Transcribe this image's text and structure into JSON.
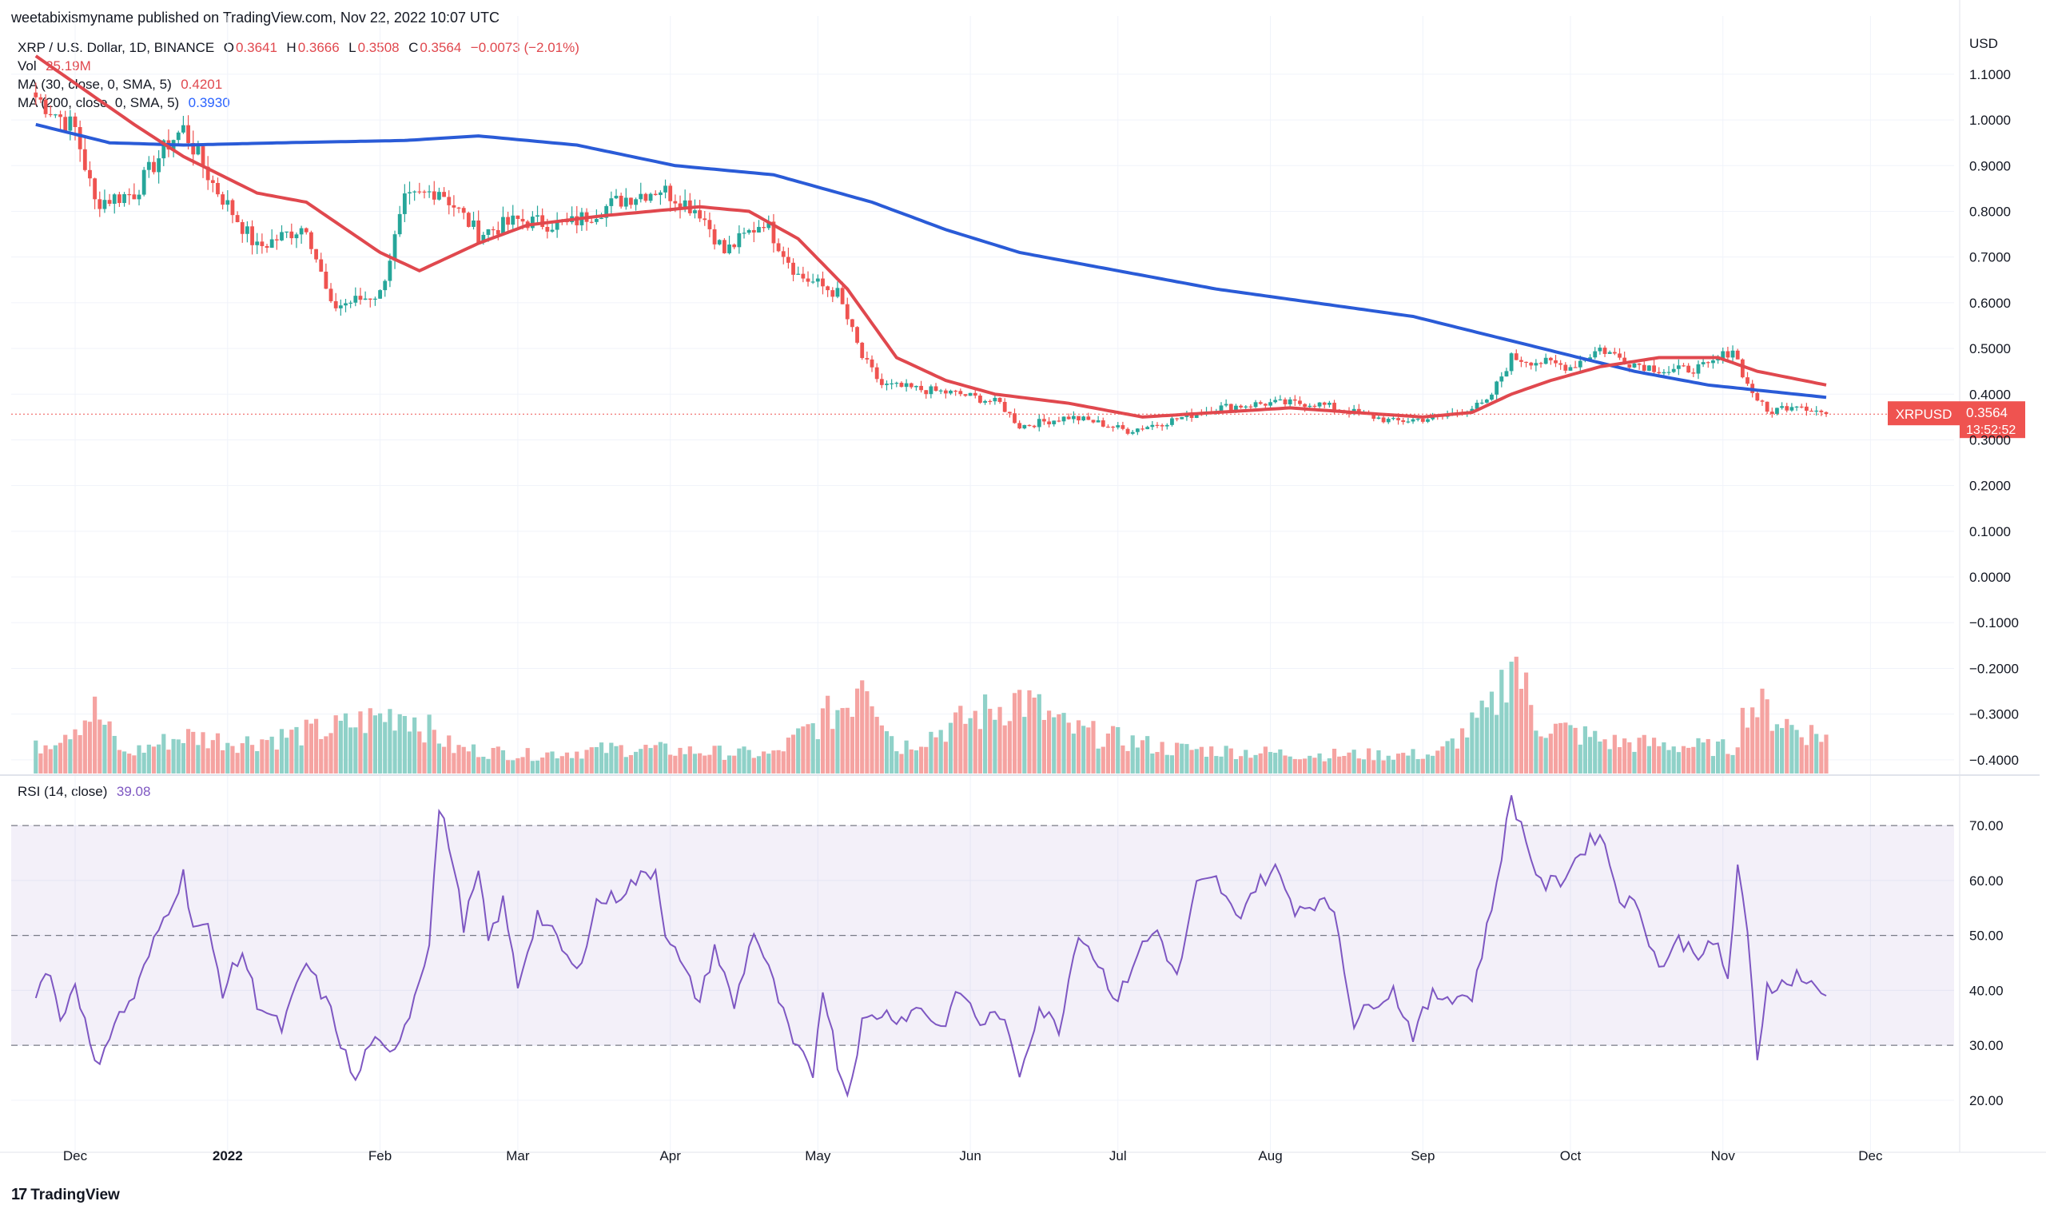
{
  "header": {
    "published": "weetabixismyname published on TradingView.com, Nov 22, 2022 10:07 UTC"
  },
  "legend": {
    "symbol": "XRP / U.S. Dollar, 1D, BINANCE",
    "o_label": "O",
    "o": "0.3641",
    "h_label": "H",
    "h": "0.3666",
    "l_label": "L",
    "l": "0.3508",
    "c_label": "C",
    "c": "0.3564",
    "change": "−0.0073 (−2.01%)",
    "vol_label": "Vol",
    "vol": "25.19M",
    "ma30_label": "MA (30, close, 0, SMA, 5)",
    "ma30": "0.4201",
    "ma200_label": "MA (200, close, 0, SMA, 5)",
    "ma200": "0.3930",
    "rsi_label": "RSI (14, close)",
    "rsi": "39.08"
  },
  "price_tag": {
    "symbol": "XRPUSD",
    "price": "0.3564",
    "countdown": "13:52:52"
  },
  "currency": "USD",
  "footer": {
    "brand": "TradingView",
    "logo": "17"
  },
  "colors": {
    "up": "#26a69a",
    "down": "#ef5350",
    "ma30": "#e0484e",
    "ma200": "#2a5bd7",
    "rsi": "#7e57c2",
    "rsi_band": "#7e57c2"
  },
  "chart_data": [
    {
      "type": "candlestick",
      "title": "XRP / U.S. Dollar, 1D, BINANCE",
      "ylabel": "USD",
      "ylim": [
        -0.43,
        1.14
      ],
      "y_ticks": [
        "1.1000",
        "1.0000",
        "0.9000",
        "0.8000",
        "0.7000",
        "0.6000",
        "0.5000",
        "0.4000",
        "0.3000",
        "0.2000",
        "0.1000",
        "0.0000",
        "−0.1000",
        "−0.2000",
        "−0.3000",
        "−0.4000"
      ],
      "y_tick_values": [
        1.1,
        1.0,
        0.9,
        0.8,
        0.7,
        0.6,
        0.5,
        0.4,
        0.3,
        0.2,
        0.1,
        0.0,
        -0.1,
        -0.2,
        -0.3,
        -0.4
      ],
      "x_ticks": [
        "Dec",
        "2022",
        "Feb",
        "Mar",
        "Apr",
        "May",
        "Jun",
        "Jul",
        "Aug",
        "Sep",
        "Oct",
        "Nov",
        "Dec"
      ],
      "x_tick_days": [
        8,
        39,
        70,
        98,
        129,
        159,
        190,
        220,
        251,
        282,
        312,
        343,
        373
      ],
      "close_anchors": [
        [
          0,
          1.05
        ],
        [
          8,
          0.98
        ],
        [
          12,
          0.82
        ],
        [
          20,
          0.84
        ],
        [
          27,
          0.95
        ],
        [
          30,
          0.98
        ],
        [
          36,
          0.86
        ],
        [
          45,
          0.72
        ],
        [
          55,
          0.77
        ],
        [
          60,
          0.59
        ],
        [
          70,
          0.62
        ],
        [
          75,
          0.82
        ],
        [
          82,
          0.85
        ],
        [
          90,
          0.75
        ],
        [
          98,
          0.78
        ],
        [
          108,
          0.77
        ],
        [
          120,
          0.83
        ],
        [
          127,
          0.85
        ],
        [
          135,
          0.8
        ],
        [
          140,
          0.71
        ],
        [
          148,
          0.78
        ],
        [
          155,
          0.66
        ],
        [
          163,
          0.62
        ],
        [
          168,
          0.48
        ],
        [
          172,
          0.42
        ],
        [
          180,
          0.41
        ],
        [
          188,
          0.4
        ],
        [
          196,
          0.38
        ],
        [
          200,
          0.33
        ],
        [
          210,
          0.35
        ],
        [
          215,
          0.34
        ],
        [
          222,
          0.32
        ],
        [
          230,
          0.34
        ],
        [
          240,
          0.37
        ],
        [
          250,
          0.38
        ],
        [
          260,
          0.38
        ],
        [
          268,
          0.36
        ],
        [
          276,
          0.34
        ],
        [
          286,
          0.35
        ],
        [
          295,
          0.38
        ],
        [
          300,
          0.48
        ],
        [
          306,
          0.47
        ],
        [
          312,
          0.46
        ],
        [
          318,
          0.5
        ],
        [
          324,
          0.47
        ],
        [
          332,
          0.45
        ],
        [
          340,
          0.46
        ],
        [
          345,
          0.5
        ],
        [
          348,
          0.42
        ],
        [
          352,
          0.36
        ],
        [
          358,
          0.38
        ],
        [
          364,
          0.356
        ]
      ],
      "ma30": [
        [
          0,
          1.14
        ],
        [
          20,
          0.99
        ],
        [
          30,
          0.92
        ],
        [
          45,
          0.84
        ],
        [
          55,
          0.82
        ],
        [
          70,
          0.71
        ],
        [
          78,
          0.67
        ],
        [
          90,
          0.73
        ],
        [
          100,
          0.77
        ],
        [
          115,
          0.79
        ],
        [
          125,
          0.8
        ],
        [
          135,
          0.81
        ],
        [
          145,
          0.8
        ],
        [
          155,
          0.74
        ],
        [
          165,
          0.63
        ],
        [
          175,
          0.48
        ],
        [
          185,
          0.43
        ],
        [
          195,
          0.4
        ],
        [
          210,
          0.38
        ],
        [
          225,
          0.35
        ],
        [
          240,
          0.36
        ],
        [
          255,
          0.37
        ],
        [
          268,
          0.36
        ],
        [
          282,
          0.35
        ],
        [
          292,
          0.36
        ],
        [
          300,
          0.4
        ],
        [
          308,
          0.43
        ],
        [
          318,
          0.46
        ],
        [
          330,
          0.48
        ],
        [
          342,
          0.48
        ],
        [
          350,
          0.45
        ],
        [
          364,
          0.42
        ]
      ],
      "ma200": [
        [
          0,
          0.99
        ],
        [
          15,
          0.95
        ],
        [
          30,
          0.945
        ],
        [
          50,
          0.95
        ],
        [
          75,
          0.955
        ],
        [
          90,
          0.965
        ],
        [
          110,
          0.945
        ],
        [
          130,
          0.9
        ],
        [
          150,
          0.88
        ],
        [
          170,
          0.82
        ],
        [
          185,
          0.76
        ],
        [
          200,
          0.71
        ],
        [
          220,
          0.67
        ],
        [
          240,
          0.63
        ],
        [
          260,
          0.6
        ],
        [
          280,
          0.57
        ],
        [
          295,
          0.53
        ],
        [
          310,
          0.49
        ],
        [
          325,
          0.45
        ],
        [
          340,
          0.42
        ],
        [
          364,
          0.393
        ]
      ],
      "volume_series_anchors": [
        [
          0,
          0.2
        ],
        [
          12,
          0.5
        ],
        [
          18,
          0.15
        ],
        [
          30,
          0.3
        ],
        [
          42,
          0.25
        ],
        [
          60,
          0.35
        ],
        [
          75,
          0.5
        ],
        [
          85,
          0.2
        ],
        [
          100,
          0.15
        ],
        [
          120,
          0.2
        ],
        [
          150,
          0.15
        ],
        [
          166,
          0.6
        ],
        [
          168,
          0.9
        ],
        [
          175,
          0.2
        ],
        [
          200,
          0.6
        ],
        [
          210,
          0.35
        ],
        [
          230,
          0.2
        ],
        [
          260,
          0.15
        ],
        [
          285,
          0.15
        ],
        [
          296,
          0.5
        ],
        [
          298,
          0.7
        ],
        [
          300,
          1.0
        ],
        [
          305,
          0.4
        ],
        [
          320,
          0.25
        ],
        [
          345,
          0.2
        ],
        [
          348,
          0.55
        ],
        [
          352,
          0.5
        ],
        [
          358,
          0.35
        ],
        [
          364,
          0.3
        ]
      ],
      "last_price": 0.3564
    },
    {
      "type": "line",
      "title": "RSI (14, close)",
      "ylim": [
        13,
        77
      ],
      "y_ticks": [
        "70.00",
        "60.00",
        "50.00",
        "40.00",
        "30.00",
        "20.00"
      ],
      "y_tick_values": [
        70,
        60,
        50,
        40,
        30,
        20
      ],
      "band": [
        30,
        70
      ],
      "mid": 50,
      "anchors": [
        [
          0,
          40
        ],
        [
          3,
          44
        ],
        [
          5,
          34
        ],
        [
          8,
          42
        ],
        [
          12,
          26
        ],
        [
          16,
          34
        ],
        [
          20,
          39
        ],
        [
          25,
          51
        ],
        [
          30,
          61
        ],
        [
          32,
          52
        ],
        [
          35,
          51
        ],
        [
          38,
          40
        ],
        [
          42,
          47
        ],
        [
          45,
          38
        ],
        [
          50,
          33
        ],
        [
          55,
          45
        ],
        [
          60,
          36
        ],
        [
          63,
          28
        ],
        [
          65,
          23
        ],
        [
          68,
          31
        ],
        [
          72,
          28
        ],
        [
          76,
          36
        ],
        [
          80,
          49
        ],
        [
          82,
          73
        ],
        [
          84,
          67
        ],
        [
          87,
          52
        ],
        [
          90,
          61
        ],
        [
          92,
          49
        ],
        [
          95,
          56
        ],
        [
          98,
          41
        ],
        [
          102,
          54
        ],
        [
          106,
          49
        ],
        [
          110,
          43
        ],
        [
          114,
          56
        ],
        [
          118,
          57
        ],
        [
          122,
          60
        ],
        [
          126,
          62
        ],
        [
          128,
          51
        ],
        [
          132,
          43
        ],
        [
          135,
          38
        ],
        [
          138,
          48
        ],
        [
          142,
          37
        ],
        [
          146,
          51
        ],
        [
          150,
          41
        ],
        [
          154,
          30
        ],
        [
          158,
          25
        ],
        [
          160,
          41
        ],
        [
          163,
          27
        ],
        [
          165,
          21
        ],
        [
          168,
          34
        ],
        [
          172,
          36
        ],
        [
          176,
          35
        ],
        [
          180,
          37
        ],
        [
          184,
          33
        ],
        [
          188,
          40
        ],
        [
          192,
          34
        ],
        [
          196,
          36
        ],
        [
          200,
          25
        ],
        [
          204,
          37
        ],
        [
          208,
          33
        ],
        [
          212,
          51
        ],
        [
          216,
          45
        ],
        [
          220,
          38
        ],
        [
          224,
          47
        ],
        [
          228,
          51
        ],
        [
          232,
          42
        ],
        [
          236,
          59
        ],
        [
          240,
          60
        ],
        [
          244,
          53
        ],
        [
          248,
          59
        ],
        [
          252,
          62
        ],
        [
          256,
          55
        ],
        [
          260,
          56
        ],
        [
          264,
          55
        ],
        [
          268,
          34
        ],
        [
          272,
          38
        ],
        [
          276,
          40
        ],
        [
          280,
          32
        ],
        [
          284,
          39
        ],
        [
          288,
          39
        ],
        [
          292,
          39
        ],
        [
          296,
          55
        ],
        [
          300,
          75
        ],
        [
          302,
          70
        ],
        [
          306,
          59
        ],
        [
          310,
          60
        ],
        [
          314,
          65
        ],
        [
          318,
          69
        ],
        [
          322,
          57
        ],
        [
          326,
          55
        ],
        [
          330,
          44
        ],
        [
          334,
          49
        ],
        [
          338,
          47
        ],
        [
          342,
          48
        ],
        [
          344,
          42
        ],
        [
          346,
          62
        ],
        [
          348,
          50
        ],
        [
          350,
          28
        ],
        [
          352,
          41
        ],
        [
          356,
          41
        ],
        [
          358,
          43
        ],
        [
          362,
          40
        ],
        [
          364,
          39
        ]
      ],
      "last_value": 39.08
    }
  ]
}
